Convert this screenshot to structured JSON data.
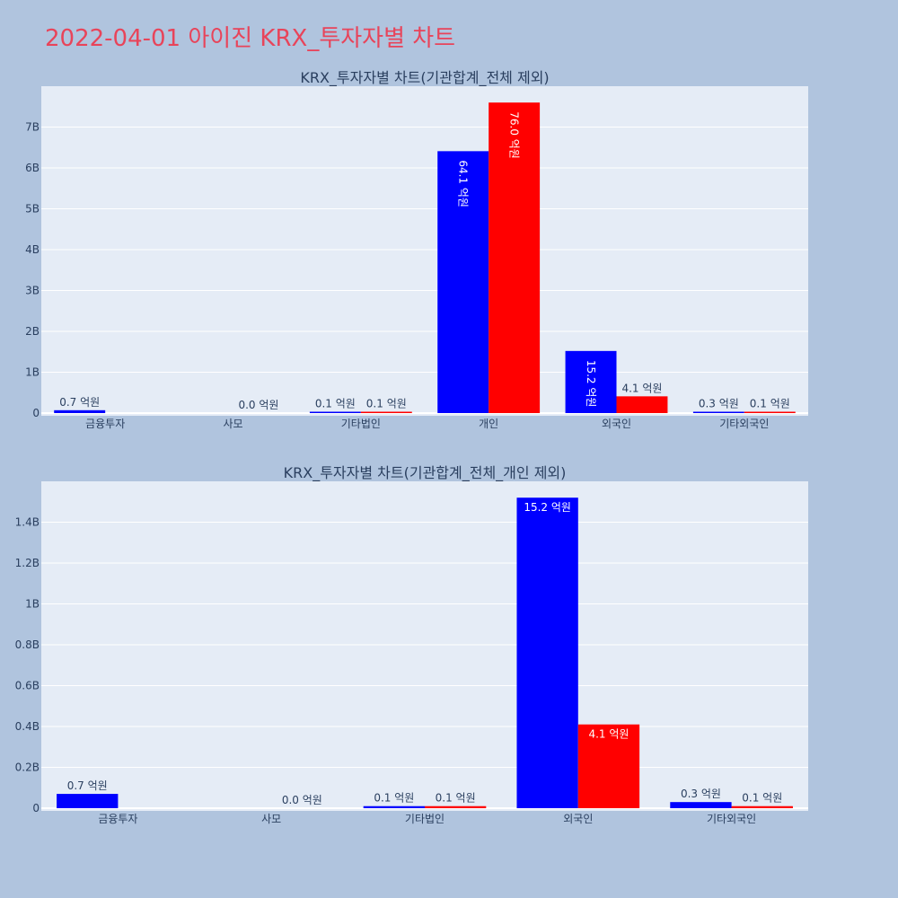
{
  "title": "2022-04-01 아이진 KRX_투자자별 차트",
  "colors": {
    "background": "#b0c4de",
    "plot_bg": "#e5ecf6",
    "series_a": "#0000ff",
    "series_b": "#ff0000",
    "title": "#e8445a",
    "text": "#2a3f5f"
  },
  "chart_data": [
    {
      "type": "bar",
      "title": "KRX_투자자별 차트(기관합계_전체 제외)",
      "categories": [
        "금융투자",
        "사모",
        "기타법인",
        "개인",
        "외국인",
        "기타외국인"
      ],
      "series": [
        {
          "color": "#0000ff",
          "values": [
            70000000,
            0,
            10000000,
            6410000000,
            1520000000,
            30000000
          ],
          "labels": [
            "0.7 억원",
            "",
            "0.1 억원",
            "64.1 억원",
            "15.2 억원",
            "0.3 억원"
          ]
        },
        {
          "color": "#ff0000",
          "values": [
            0,
            0,
            10000000,
            7600000000,
            410000000,
            10000000
          ],
          "labels": [
            "",
            "0.0 억원",
            "0.1 억원",
            "76.0 억원",
            "4.1 억원",
            "0.1 억원"
          ]
        }
      ],
      "ylim": [
        0,
        8000000000
      ],
      "yticks": [
        0,
        1000000000,
        2000000000,
        3000000000,
        4000000000,
        5000000000,
        6000000000,
        7000000000
      ],
      "ytick_labels": [
        "0",
        "1B",
        "2B",
        "3B",
        "4B",
        "5B",
        "6B",
        "7B"
      ],
      "grid": true,
      "legend": "none"
    },
    {
      "type": "bar",
      "title": "KRX_투자자별 차트(기관합계_전체_개인 제외)",
      "categories": [
        "금융투자",
        "사모",
        "기타법인",
        "외국인",
        "기타외국인"
      ],
      "series": [
        {
          "color": "#0000ff",
          "values": [
            70000000,
            0,
            10000000,
            1520000000,
            30000000
          ],
          "labels": [
            "0.7 억원",
            "",
            "0.1 억원",
            "15.2 억원",
            "0.3 억원"
          ]
        },
        {
          "color": "#ff0000",
          "values": [
            0,
            0,
            10000000,
            410000000,
            10000000
          ],
          "labels": [
            "",
            "0.0 억원",
            "0.1 억원",
            "4.1 억원",
            "0.1 억원"
          ]
        }
      ],
      "ylim": [
        0,
        1600000000
      ],
      "yticks": [
        0,
        200000000,
        400000000,
        600000000,
        800000000,
        1000000000,
        1200000000,
        1400000000
      ],
      "ytick_labels": [
        "0",
        "0.2B",
        "0.4B",
        "0.6B",
        "0.8B",
        "1B",
        "1.2B",
        "1.4B"
      ],
      "grid": true,
      "legend": "none"
    }
  ]
}
